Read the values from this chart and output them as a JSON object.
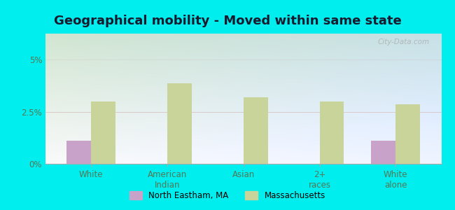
{
  "title": "Geographical mobility - Moved within same state",
  "categories": [
    "White",
    "American\nIndian",
    "Asian",
    "2+\nraces",
    "White\nalone"
  ],
  "north_eastham_values": [
    1.1,
    0.0,
    0.0,
    0.0,
    1.1
  ],
  "massachusetts_values": [
    3.0,
    3.85,
    3.2,
    3.0,
    2.85
  ],
  "bar_color_ne": "#c8a2c8",
  "bar_color_ma": "#c8d49a",
  "background_outer": "#00EEEE",
  "ylim": [
    0,
    6.25
  ],
  "ytick_labels": [
    "0%",
    "2.5%",
    "5%"
  ],
  "ytick_values": [
    0,
    2.5,
    5.0
  ],
  "legend_ne": "North Eastham, MA",
  "legend_ma": "Massachusetts",
  "title_fontsize": 13,
  "watermark": "City-Data.com",
  "grad_top": "#d0e8c8",
  "grad_bottom": "#eef8ee",
  "grad_right": "#c8dde8",
  "tick_color": "#557755",
  "spine_color": "#aaaaaa"
}
